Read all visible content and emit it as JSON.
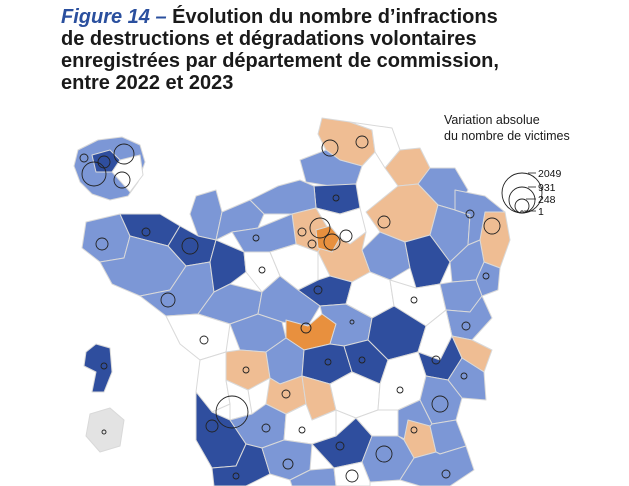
{
  "title": {
    "figure_label": "Figure 14 –",
    "line1": "Évolution du nombre d’infractions",
    "line2": "de destructions et dégradations volontaires",
    "line3": "enregistrées par département de commission,",
    "line4": "entre 2022 et 2023"
  },
  "legend": {
    "caption_line1": "Variation absolue",
    "caption_line2": "du nombre de victimes",
    "sizes": [
      "2049",
      "931",
      "248",
      "1"
    ]
  },
  "colors": {
    "dark_blue": "#2f4e9e",
    "mid_blue": "#7c97d6",
    "white": "#ffffff",
    "light_orange": "#efbd93",
    "orange": "#e8903e",
    "border": "#d9d9d9",
    "circle_stroke": "#222222",
    "overseas_grey": "#e3e3e3"
  }
}
